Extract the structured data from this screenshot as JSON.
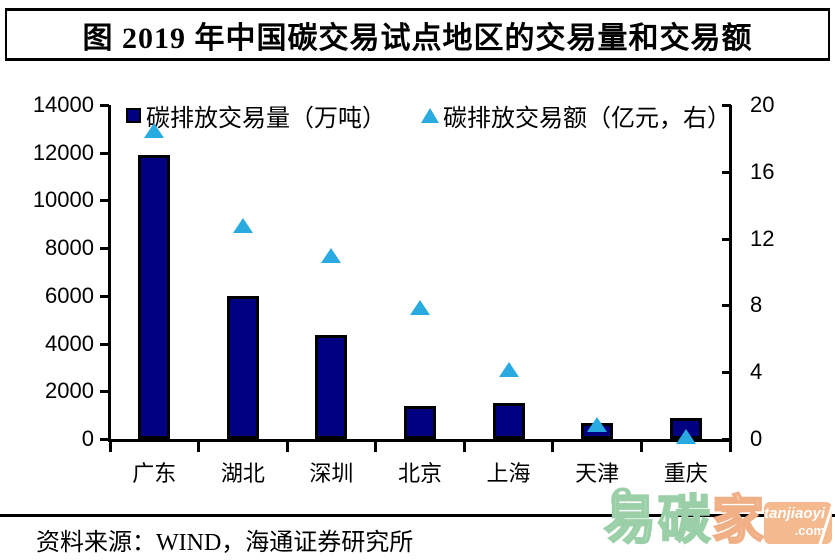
{
  "title": "图  2019 年中国碳交易试点地区的交易量和交易额",
  "legend": [
    {
      "label": "碳排放交易量（万吨）",
      "marker": "square"
    },
    {
      "label": "碳排放交易额（亿元，右）",
      "marker": "triangle"
    }
  ],
  "chart_data": {
    "type": "bar",
    "title": "2019 年中国碳交易试点地区的交易量和交易额",
    "categories": [
      "广东",
      "湖北",
      "深圳",
      "北京",
      "上海",
      "天津",
      "重庆"
    ],
    "series": [
      {
        "name": "碳排放交易量（万吨）",
        "type": "bar",
        "axis": "left",
        "values": [
          11900,
          6000,
          4350,
          1400,
          1500,
          650,
          880
        ]
      },
      {
        "name": "碳排放交易额（亿元，右）",
        "type": "scatter",
        "marker": "triangle",
        "axis": "right",
        "values": [
          18.5,
          12.8,
          11.0,
          7.9,
          4.2,
          0.9,
          0.2
        ]
      }
    ],
    "left_axis": {
      "min": 0,
      "max": 14000,
      "ticks": [
        0,
        2000,
        4000,
        6000,
        8000,
        10000,
        12000,
        14000
      ]
    },
    "right_axis": {
      "min": 0,
      "max": 20,
      "ticks": [
        0,
        4,
        8,
        12,
        16,
        20
      ]
    },
    "grid": false,
    "legend_position": "top"
  },
  "source": "资料来源：WIND，海通证券研究所",
  "watermark": {
    "char_e": "e",
    "char1": "易",
    "char2": "碳",
    "char3": "家",
    "badge_top": "tanjiaoyi",
    "badge_bottom": ".com"
  },
  "colors": {
    "bar_fill": "#000080",
    "bar_border": "#000000",
    "triangle": "#29ABE2",
    "axis": "#000000",
    "text": "#000000",
    "watermark_green": "#9ACFA8",
    "watermark_peach": "#F0AF85"
  }
}
